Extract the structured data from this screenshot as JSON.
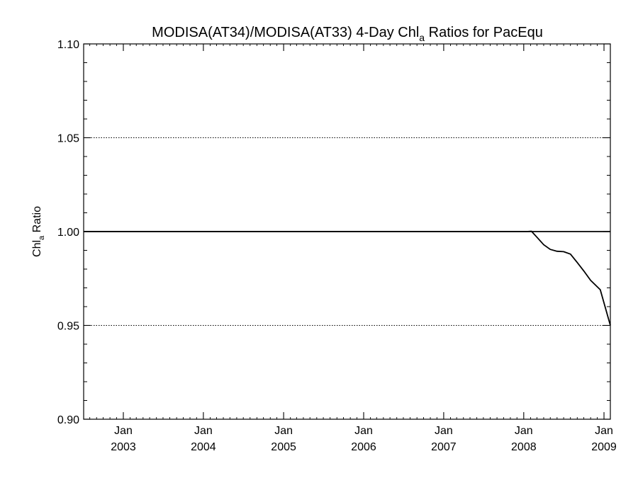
{
  "chart_data": {
    "type": "line",
    "title": {
      "prefix": "MODISA(AT34)/MODISA(AT33) 4-Day Chl",
      "subscript": "a",
      "suffix": " Ratios for PacEqu"
    },
    "ylabel": {
      "base": "Chl",
      "subscript": "a",
      "suffix": " Ratio"
    },
    "xlabel": "",
    "x_range": [
      "2002-07-04",
      "2009-01-30"
    ],
    "ylim": [
      0.9,
      1.1
    ],
    "y_ticks": [
      {
        "value": 0.9,
        "label": "0.90"
      },
      {
        "value": 0.95,
        "label": "0.95"
      },
      {
        "value": 1.0,
        "label": "1.00"
      },
      {
        "value": 1.05,
        "label": "1.05"
      },
      {
        "value": 1.1,
        "label": "1.10"
      }
    ],
    "y_gridlines": [
      0.95,
      1.05
    ],
    "reference_line": 1.0,
    "x_ticks": [
      {
        "date": "2003-01-01",
        "month": "Jan",
        "year": "2003"
      },
      {
        "date": "2004-01-01",
        "month": "Jan",
        "year": "2004"
      },
      {
        "date": "2005-01-01",
        "month": "Jan",
        "year": "2005"
      },
      {
        "date": "2006-01-01",
        "month": "Jan",
        "year": "2006"
      },
      {
        "date": "2007-01-01",
        "month": "Jan",
        "year": "2007"
      },
      {
        "date": "2008-01-01",
        "month": "Jan",
        "year": "2008"
      },
      {
        "date": "2009-01-01",
        "month": "Jan",
        "year": "2009"
      }
    ],
    "series": [
      {
        "color": "#000000",
        "points": [
          {
            "x": "2002-07-04",
            "y": 1.0
          },
          {
            "x": "2008-01-15",
            "y": 1.0
          },
          {
            "x": "2008-02-05",
            "y": 1.0002
          },
          {
            "x": "2008-03-01",
            "y": 0.997
          },
          {
            "x": "2008-04-01",
            "y": 0.993
          },
          {
            "x": "2008-05-01",
            "y": 0.9905
          },
          {
            "x": "2008-06-01",
            "y": 0.9895
          },
          {
            "x": "2008-07-01",
            "y": 0.9893
          },
          {
            "x": "2008-08-01",
            "y": 0.988
          },
          {
            "x": "2008-09-01",
            "y": 0.9835
          },
          {
            "x": "2008-10-01",
            "y": 0.979
          },
          {
            "x": "2008-11-01",
            "y": 0.974
          },
          {
            "x": "2008-12-15",
            "y": 0.969
          },
          {
            "x": "2009-01-30",
            "y": 0.95
          }
        ]
      }
    ]
  }
}
